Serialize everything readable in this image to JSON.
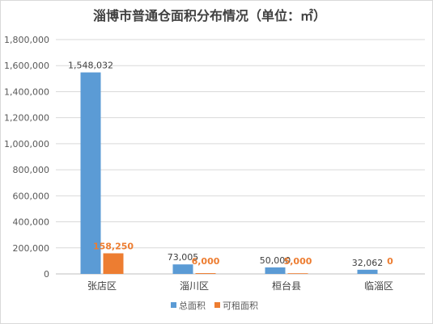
{
  "chart_data": {
    "type": "bar",
    "title": "淄博市普通仓面积分布情况（单位：㎡）",
    "categories": [
      "张店区",
      "淄川区",
      "桓台县",
      "临淄区"
    ],
    "series": [
      {
        "name": "总面积",
        "values": [
          1548032,
          73005,
          50000,
          32062
        ],
        "labels": [
          "1,548,032",
          "73,005",
          "50,000",
          "32,062"
        ]
      },
      {
        "name": "可租面积",
        "values": [
          158250,
          6000,
          5000,
          0
        ],
        "labels": [
          "158,250",
          "6,000",
          "5,000",
          "0"
        ]
      }
    ],
    "ylim": [
      0,
      1800000
    ],
    "yticks": [
      "0",
      "200,000",
      "400,000",
      "600,000",
      "800,000",
      "1,000,000",
      "1,200,000",
      "1,400,000",
      "1,600,000",
      "1,800,000"
    ],
    "grid": true,
    "legend": "bottom",
    "colors": [
      "#5B9BD5",
      "#ED7D31"
    ]
  }
}
